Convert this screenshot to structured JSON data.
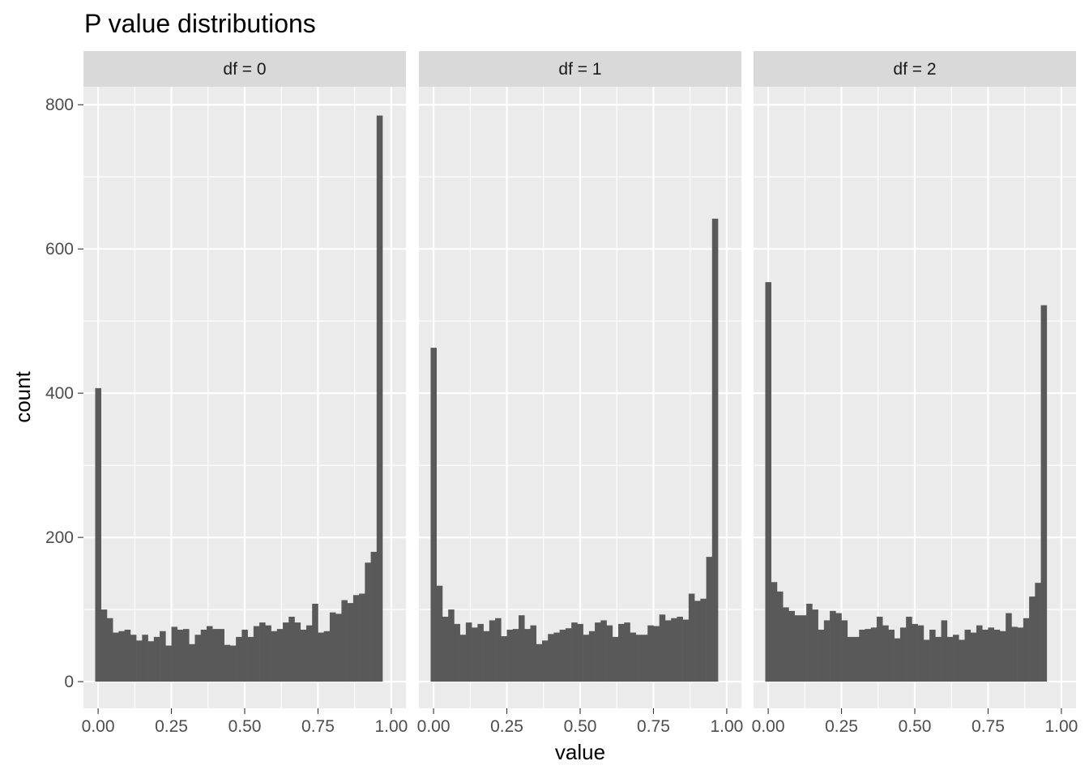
{
  "chart_data": {
    "type": "bar",
    "subtype": "faceted-histogram",
    "title": "P value distributions",
    "xlabel": "value",
    "ylabel": "count",
    "xlim": [
      -0.05,
      1.05
    ],
    "ylim": [
      -37,
      825
    ],
    "x_ticks": [
      0,
      0.25,
      0.5,
      0.75,
      1
    ],
    "x_tick_labels": [
      "0.00",
      "0.25",
      "0.50",
      "0.75",
      "1.00"
    ],
    "y_ticks": [
      0,
      200,
      400,
      600,
      800
    ],
    "y_tick_labels": [
      "0",
      "200",
      "400",
      "600",
      "800"
    ],
    "grid": true,
    "colors": {
      "bar": "#595959",
      "panel": "#ebebeb",
      "grid": "#ffffff",
      "strip": "#d9d9d9"
    },
    "bins": {
      "count": 50,
      "x_start": -0.01,
      "width": 0.02
    },
    "panels": [
      {
        "label": "df = 0",
        "counts": [
          407,
          100,
          88,
          68,
          70,
          72,
          65,
          57,
          65,
          56,
          62,
          70,
          50,
          76,
          72,
          73,
          52,
          65,
          72,
          77,
          73,
          73,
          51,
          50,
          62,
          72,
          62,
          77,
          82,
          78,
          70,
          73,
          82,
          90,
          82,
          72,
          78,
          108,
          68,
          70,
          96,
          94,
          113,
          109,
          120,
          122,
          165,
          180,
          785,
          0
        ]
      },
      {
        "label": "df = 1",
        "counts": [
          463,
          133,
          90,
          100,
          80,
          65,
          82,
          75,
          80,
          70,
          85,
          88,
          63,
          72,
          73,
          92,
          73,
          78,
          52,
          57,
          66,
          68,
          72,
          74,
          82,
          80,
          65,
          70,
          82,
          85,
          78,
          62,
          80,
          82,
          68,
          65,
          65,
          78,
          77,
          93,
          85,
          88,
          90,
          86,
          122,
          112,
          115,
          173,
          642,
          0
        ]
      },
      {
        "label": "df = 2",
        "counts": [
          554,
          138,
          125,
          103,
          98,
          92,
          92,
          108,
          100,
          72,
          85,
          98,
          95,
          85,
          62,
          62,
          72,
          73,
          75,
          90,
          78,
          72,
          60,
          75,
          90,
          80,
          78,
          58,
          72,
          62,
          85,
          62,
          65,
          58,
          72,
          68,
          78,
          72,
          75,
          72,
          70,
          95,
          76,
          75,
          88,
          118,
          137,
          522,
          0,
          0
        ]
      }
    ]
  }
}
